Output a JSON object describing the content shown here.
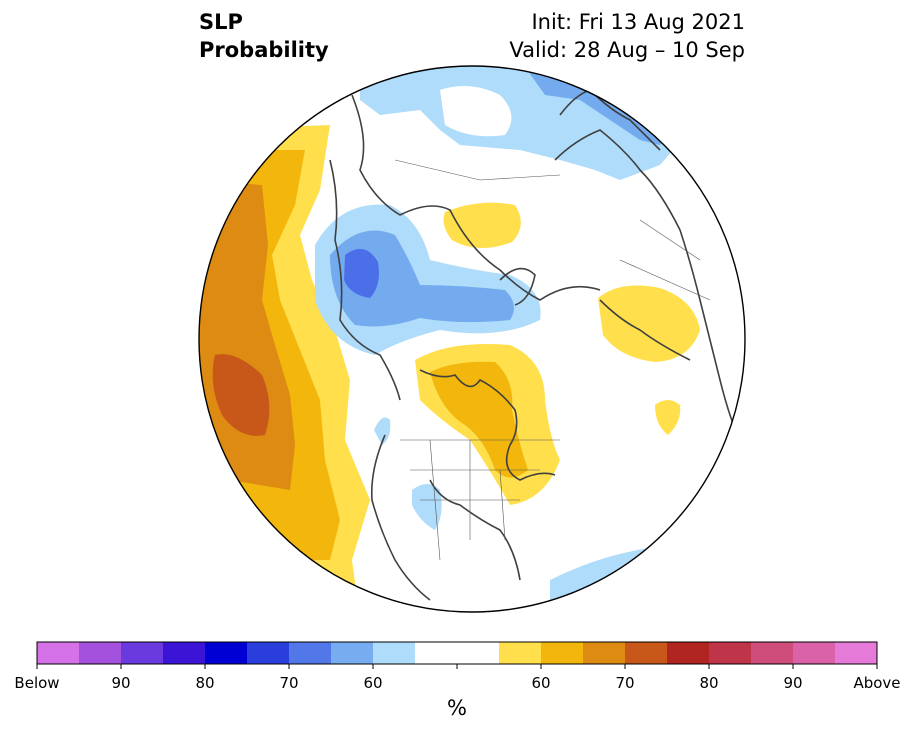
{
  "header": {
    "title_line1": "SLP",
    "title_line2": "Probability",
    "init_text": "Init: Fri 13 Aug 2021",
    "valid_text": "Valid: 28 Aug – 10 Sep"
  },
  "map": {
    "projection": "north-polar-stereographic",
    "region": "Northern Hemisphere",
    "colors": {
      "below_60": "#aedcfa",
      "below_70": "#74abef",
      "below_80": "#4b6fe8",
      "above_60": "#ffe04c",
      "above_70": "#f2b60c",
      "above_80": "#dd8b12",
      "above_90": "#c8571a",
      "coast": "#404040"
    }
  },
  "colorbar": {
    "unit": "%",
    "ticks": [
      "Below",
      "90",
      "80",
      "70",
      "60",
      "60",
      "70",
      "80",
      "90",
      "Above"
    ],
    "colors": [
      "#d672e8",
      "#a452de",
      "#6b3ade",
      "#3c14d6",
      "#0000d4",
      "#2a3edb",
      "#5277e8",
      "#77adf0",
      "#aedcfa",
      "#ffffff",
      "#ffffff",
      "#ffe04c",
      "#f2b60c",
      "#dd8b12",
      "#c8571a",
      "#b02422",
      "#c0344a",
      "#cf4d7a",
      "#d962a9",
      "#e67ad8"
    ]
  }
}
